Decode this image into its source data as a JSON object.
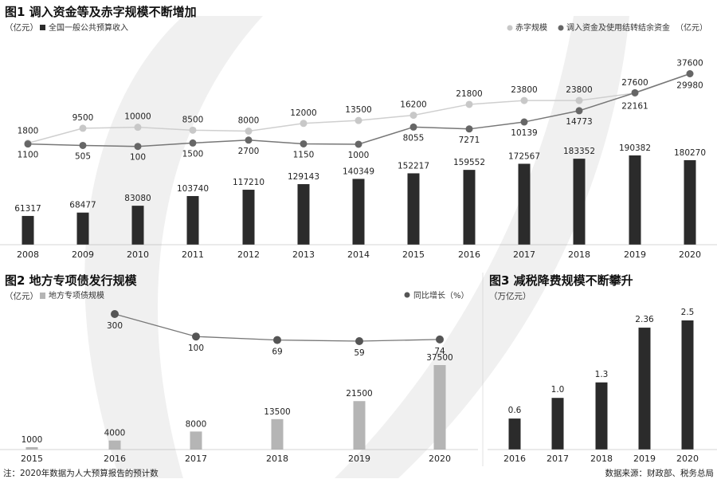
{
  "chart_data": [
    {
      "type": "bar",
      "title": "图1 调入资金等及赤字规模不断增加",
      "unit": "（亿元）",
      "categories": [
        "2008",
        "2009",
        "2010",
        "2011",
        "2012",
        "2013",
        "2014",
        "2015",
        "2016",
        "2017",
        "2018",
        "2019",
        "2020"
      ],
      "series": [
        {
          "name": "全国一般公共预算收入",
          "kind": "bar",
          "color": "#2b2b2b",
          "values": [
            61317,
            68477,
            83080,
            103740,
            117210,
            129143,
            140349,
            152217,
            159552,
            172567,
            183352,
            190382,
            180270
          ]
        },
        {
          "name": "赤字规模",
          "kind": "line",
          "color": "#c8c8c8",
          "values": [
            1800,
            9500,
            10000,
            8500,
            8000,
            12000,
            13500,
            16200,
            21800,
            23800,
            23800,
            27600,
            37600
          ]
        },
        {
          "name": "调入资金及使用结转结余资金",
          "kind": "line",
          "color": "#666666",
          "values": [
            1100,
            505,
            100,
            1500,
            2700,
            1150,
            1000,
            8055,
            7271,
            10139,
            14773,
            22161,
            29980
          ]
        }
      ],
      "legend_unit": "（亿元）"
    },
    {
      "type": "bar",
      "title": "图2 地方专项债发行规模",
      "unit": "（亿元）",
      "categories": [
        "2015",
        "2016",
        "2017",
        "2018",
        "2019",
        "2020"
      ],
      "series": [
        {
          "name": "地方专项债规模",
          "kind": "bar",
          "color": "#b5b5b5",
          "values": [
            1000,
            4000,
            8000,
            13500,
            21500,
            37500
          ]
        },
        {
          "name": "同比增长（%）",
          "kind": "line",
          "color": "#555555",
          "values": [
            null,
            300,
            100,
            69,
            59,
            74
          ]
        }
      ]
    },
    {
      "type": "bar",
      "title": "图3 减税降费规模不断攀升",
      "unit": "（万亿元）",
      "categories": [
        "2016",
        "2017",
        "2018",
        "2019",
        "2020"
      ],
      "series": [
        {
          "name": "减税降费规模",
          "kind": "bar",
          "color": "#2b2b2b",
          "labels": [
            "0.6",
            "1.0",
            "1.3",
            "2.36",
            "2.5"
          ],
          "values": [
            0.6,
            1.0,
            1.3,
            2.36,
            2.5
          ]
        }
      ]
    }
  ],
  "footnote": "注：2020年数据为人大预算报告的预计数",
  "source": "数据来源：财政部、税务总局"
}
